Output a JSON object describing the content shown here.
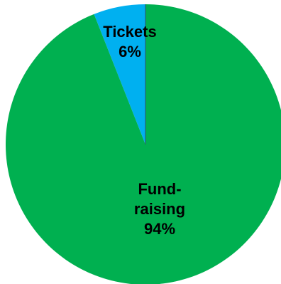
{
  "chart_data": {
    "type": "pie",
    "title": "",
    "start_angle_deg": 0,
    "direction": "counterclockwise",
    "slices": [
      {
        "category": "Tickets",
        "value": 6,
        "label_lines": [
          "Tickets",
          "6%"
        ],
        "color": "#00b0f0"
      },
      {
        "category": "Fund-raising",
        "value": 94,
        "label_lines": [
          "Fund-",
          "raising",
          "94%"
        ],
        "color": "#00b050"
      }
    ],
    "legend": "none",
    "border_color": "#000000"
  }
}
